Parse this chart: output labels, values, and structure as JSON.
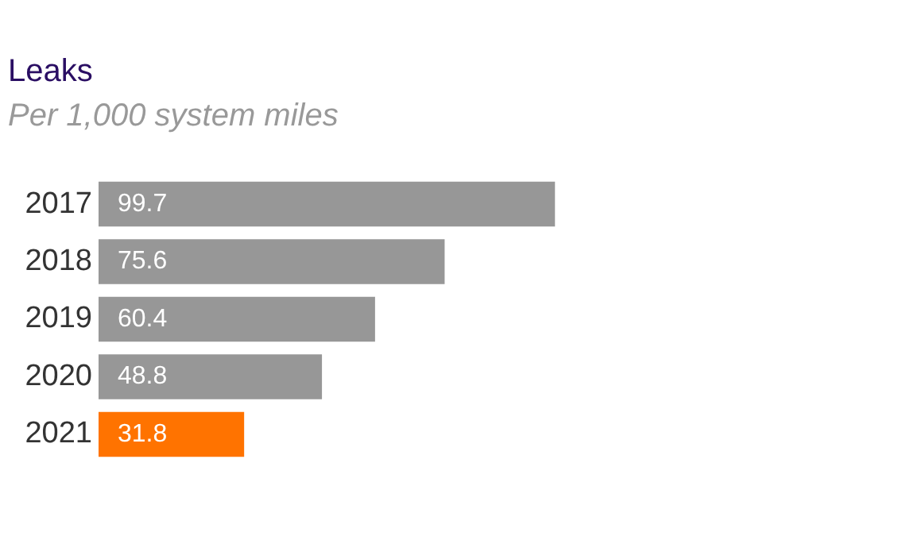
{
  "chart_data": {
    "type": "bar",
    "orientation": "horizontal",
    "title": "Leaks",
    "subtitle": "Per 1,000 system miles",
    "categories": [
      "2017",
      "2018",
      "2019",
      "2020",
      "2021"
    ],
    "values": [
      99.7,
      75.6,
      60.4,
      48.8,
      31.8
    ],
    "colors": [
      "#979797",
      "#979797",
      "#979797",
      "#979797",
      "#ff7300"
    ],
    "data_labels": true,
    "grid": false,
    "legend": false
  }
}
